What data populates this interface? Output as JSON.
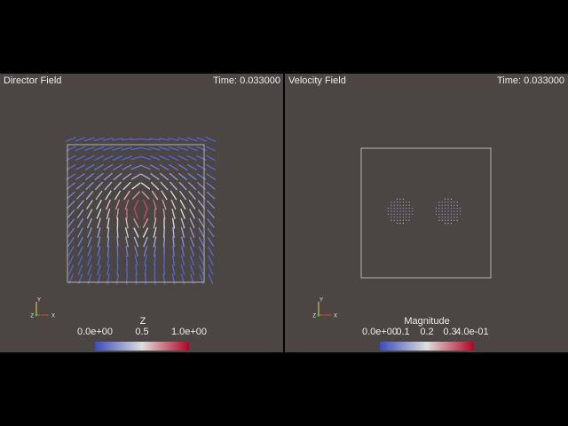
{
  "left_view": {
    "title": "Director Field",
    "time": "Time: 0.033000",
    "colorbar": {
      "title": "Z",
      "labels": [
        "0.0e+00",
        "0.5",
        "1.0e+00"
      ]
    },
    "axes": [
      "Y",
      "Z",
      "X"
    ]
  },
  "right_view": {
    "title": "Velocity Field",
    "time": "Time: 0.033000",
    "colorbar": {
      "title": "Magnitude",
      "labels": [
        "0.0e+00",
        "0.1",
        "0.2",
        "0.3",
        "4.0e-01"
      ]
    },
    "axes": [
      "Y",
      "Z",
      "X"
    ]
  }
}
